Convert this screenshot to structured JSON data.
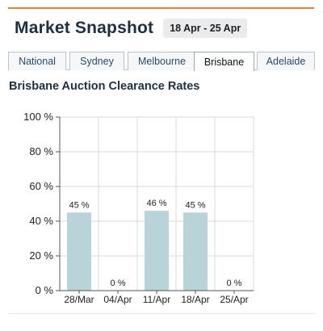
{
  "header": {
    "title": "Market Snapshot",
    "date_range": "18 Apr - 25 Apr"
  },
  "tabs": [
    {
      "label": "National",
      "active": false
    },
    {
      "label": "Sydney",
      "active": false
    },
    {
      "label": "Melbourne",
      "active": false
    },
    {
      "label": "Brisbane",
      "active": true
    },
    {
      "label": "Adelaide",
      "active": false
    }
  ],
  "colors": {
    "accent_rule": "#e8803a",
    "bar": "#b8d4d8",
    "grid": "#d8d8d8"
  },
  "chart_data": {
    "type": "bar",
    "title": "Brisbane Auction Clearance Rates",
    "categories": [
      "28/Mar",
      "04/Apr",
      "11/Apr",
      "18/Apr",
      "25/Apr"
    ],
    "values": [
      45,
      0,
      46,
      45,
      0
    ],
    "data_labels": [
      "45 %",
      "0 %",
      "46 %",
      "45 %",
      "0 %"
    ],
    "y_ticks": [
      0,
      20,
      40,
      60,
      80,
      100
    ],
    "y_tick_labels": [
      "0 %",
      "20 %",
      "40 %",
      "60 %",
      "80 %",
      "100 %"
    ],
    "ylim": [
      0,
      100
    ],
    "xlabel": "",
    "ylabel": "",
    "grid": true
  }
}
